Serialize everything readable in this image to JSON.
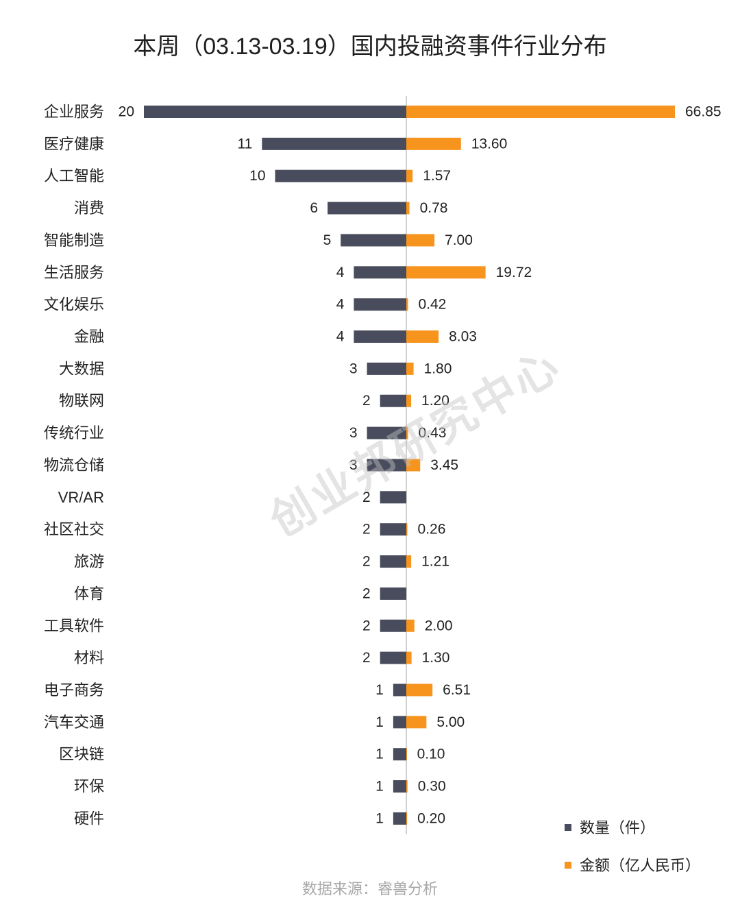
{
  "chart_data": {
    "type": "bar",
    "orientation": "horizontal",
    "layout": "diverging",
    "title": "本周（03.13-03.19）国内投融资事件行业分布",
    "xlabel": "",
    "ylabel": "",
    "categories": [
      "企业服务",
      "医疗健康",
      "人工智能",
      "消费",
      "智能制造",
      "生活服务",
      "文化娱乐",
      "金融",
      "大数据",
      "物联网",
      "传统行业",
      "物流仓储",
      "VR/AR",
      "社区社交",
      "旅游",
      "体育",
      "工具软件",
      "材料",
      "电子商务",
      "汽车交通",
      "区块链",
      "环保",
      "硬件"
    ],
    "series": [
      {
        "name": "数量（件）",
        "side": "left",
        "color": "#494c5c",
        "values": [
          20,
          11,
          10,
          6,
          5,
          4,
          4,
          4,
          3,
          2,
          3,
          3,
          2,
          2,
          2,
          2,
          2,
          2,
          1,
          1,
          1,
          1,
          1
        ]
      },
      {
        "name": "金额（亿人民币）",
        "side": "right",
        "color": "#f7941d",
        "values": [
          66.85,
          13.6,
          1.57,
          0.78,
          7.0,
          19.72,
          0.42,
          8.03,
          1.8,
          1.2,
          0.43,
          3.45,
          null,
          0.26,
          1.21,
          null,
          2.0,
          1.3,
          6.51,
          5.0,
          0.1,
          0.3,
          0.2
        ]
      }
    ],
    "data_labels": true,
    "grid": false,
    "legend": "bottom-right"
  },
  "source_note": "数据来源：睿兽分析",
  "watermark": "创业邦研究中心"
}
